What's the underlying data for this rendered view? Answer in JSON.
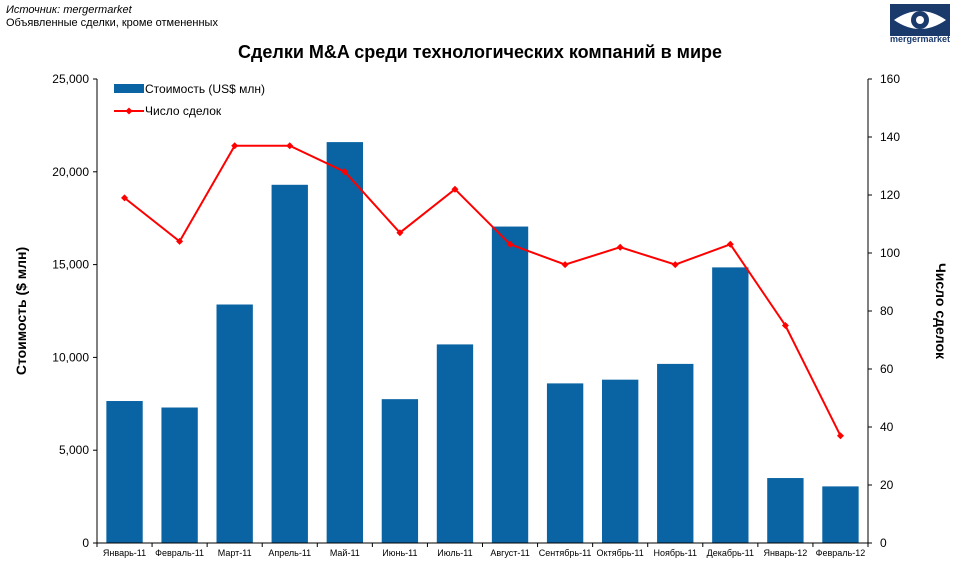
{
  "source": {
    "line1": "Источник: mergermarket",
    "line2": "Объявленные сделки, кроме отмененных"
  },
  "logo": {
    "text": "mergermarket"
  },
  "colors": {
    "bar": "#0a64a4",
    "line": "#ff0000",
    "logo": "#1a3a6b"
  },
  "chart_data": {
    "type": "bar",
    "title": "Сделки M&A среди технологических компаний в мире",
    "categories": [
      "Январь-11",
      "Февраль-11",
      "Март-11",
      "Апрель-11",
      "Май-11",
      "Июнь-11",
      "Июль-11",
      "Август-11",
      "Сентябрь-11",
      "Октябрь-11",
      "Ноябрь-11",
      "Декабрь-11",
      "Январь-12",
      "Февраль-12"
    ],
    "series": [
      {
        "name": "Стоимость (US$ млн)",
        "type": "bar",
        "axis": "left",
        "values": [
          7650,
          7300,
          12850,
          19300,
          21600,
          7750,
          10700,
          17050,
          8600,
          8800,
          9650,
          14850,
          3500,
          3050
        ]
      },
      {
        "name": "Число сделок",
        "type": "line",
        "axis": "right",
        "values": [
          119,
          104,
          137,
          137,
          128,
          107,
          122,
          103,
          96,
          102,
          96,
          103,
          75,
          37
        ]
      }
    ],
    "ylabel": "Стоимость ($ млн)",
    "y2label": "Число сделок",
    "ylim": [
      0,
      25000
    ],
    "y2lim": [
      0,
      160
    ],
    "yticks": [
      "0",
      "5,000",
      "10,000",
      "15,000",
      "20,000",
      "25,000"
    ],
    "y2ticks": [
      "0",
      "20",
      "40",
      "60",
      "80",
      "100",
      "120",
      "140",
      "160"
    ],
    "grid": false,
    "legend": "top-left"
  }
}
